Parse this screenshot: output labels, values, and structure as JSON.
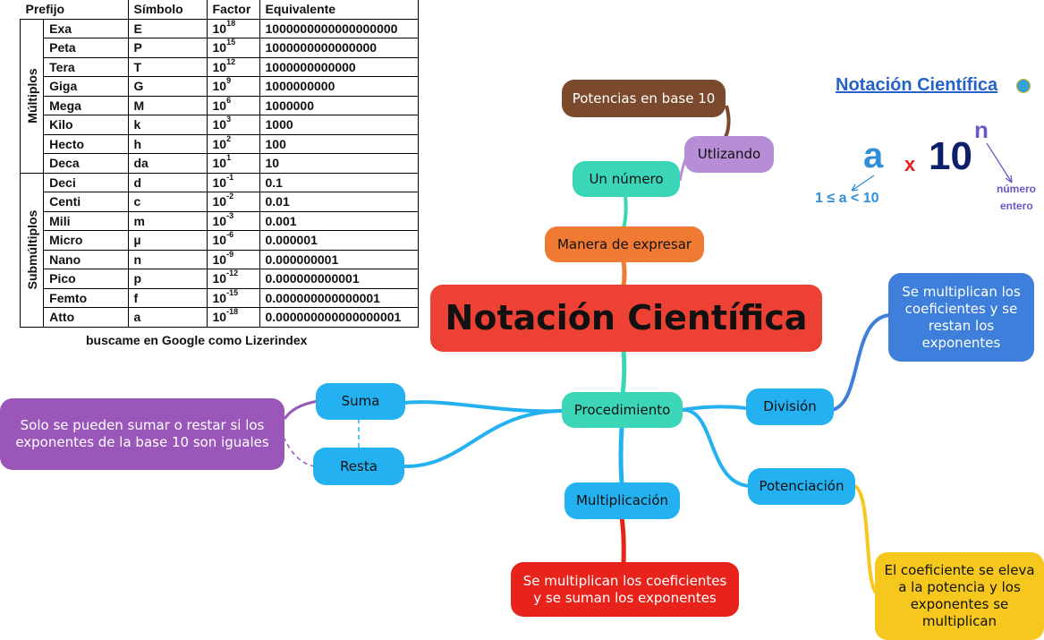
{
  "table": {
    "headers": [
      "Prefijo",
      "Símbolo",
      "Factor",
      "Equivalente"
    ],
    "groups": {
      "multiplos": "Múltiplos",
      "submultiplos": "Submúltiplos"
    },
    "rows": [
      {
        "prefix": "Exa",
        "symbol": "E",
        "base": "10",
        "exp": "18",
        "equivalent": "1000000000000000000"
      },
      {
        "prefix": "Peta",
        "symbol": "P",
        "base": "10",
        "exp": "15",
        "equivalent": "1000000000000000"
      },
      {
        "prefix": "Tera",
        "symbol": "T",
        "base": "10",
        "exp": "12",
        "equivalent": "1000000000000"
      },
      {
        "prefix": "Giga",
        "symbol": "G",
        "base": "10",
        "exp": "9",
        "equivalent": "1000000000"
      },
      {
        "prefix": "Mega",
        "symbol": "M",
        "base": "10",
        "exp": "6",
        "equivalent": "1000000"
      },
      {
        "prefix": "Kilo",
        "symbol": "k",
        "base": "10",
        "exp": "3",
        "equivalent": "1000"
      },
      {
        "prefix": "Hecto",
        "symbol": "h",
        "base": "10",
        "exp": "2",
        "equivalent": "100"
      },
      {
        "prefix": "Deca",
        "symbol": "da",
        "base": "10",
        "exp": "1",
        "equivalent": "10"
      },
      {
        "prefix": "Deci",
        "symbol": "d",
        "base": "10",
        "exp": "-1",
        "equivalent": "0.1"
      },
      {
        "prefix": "Centi",
        "symbol": "c",
        "base": "10",
        "exp": "-2",
        "equivalent": "0.01"
      },
      {
        "prefix": "Mili",
        "symbol": "m",
        "base": "10",
        "exp": "-3",
        "equivalent": "0.001"
      },
      {
        "prefix": "Micro",
        "symbol": "µ",
        "base": "10",
        "exp": "-6",
        "equivalent": "0.000001"
      },
      {
        "prefix": "Nano",
        "symbol": "n",
        "base": "10",
        "exp": "-9",
        "equivalent": "0.000000001"
      },
      {
        "prefix": "Pico",
        "symbol": "p",
        "base": "10",
        "exp": "-12",
        "equivalent": "0.000000000001"
      },
      {
        "prefix": "Femto",
        "symbol": "f",
        "base": "10",
        "exp": "-15",
        "equivalent": "0.000000000000001"
      },
      {
        "prefix": "Atto",
        "symbol": "a",
        "base": "10",
        "exp": "-18",
        "equivalent": "0.000000000000000001"
      }
    ],
    "caption": "buscame en Google como Lizerindex"
  },
  "formula": {
    "title": "Notación Científica",
    "a": "a",
    "x": "x",
    "ten": "10",
    "n": "n",
    "range": "1 ≤ a < 10",
    "n_note_1": "número",
    "n_note_2": "entero"
  },
  "map": {
    "center": "Notación Científica",
    "manera": "Manera de expresar",
    "numero": "Un número",
    "utlizando": "Utlizando",
    "potencias": "Potencias en base 10",
    "procedimiento": "Procedimiento",
    "suma": "Suma",
    "resta": "Resta",
    "suma_resta_note": "Solo se pueden sumar o restar si los exponentes de la base 10 son iguales",
    "multiplicacion": "Multiplicación",
    "mult_note": "Se multiplican los coeficientes y se suman los exponentes",
    "division": "División",
    "div_note": "Se multiplican los coeficientes y se restan los exponentes",
    "potenciacion": "Potenciación",
    "pot_note": "El coeficiente se eleva a la potencia y los exponentes se multiplican"
  },
  "colors": {
    "center": "#ee4135",
    "orange": "#f07a34",
    "teal": "#3ad6b7",
    "purple_light": "#b78ed6",
    "brown": "#7b4a2c",
    "blue": "#24b1f1",
    "purple": "#9a56b8",
    "red": "#e8231c",
    "blue_dark": "#3d7fdb",
    "yellow": "#f6c81e"
  }
}
